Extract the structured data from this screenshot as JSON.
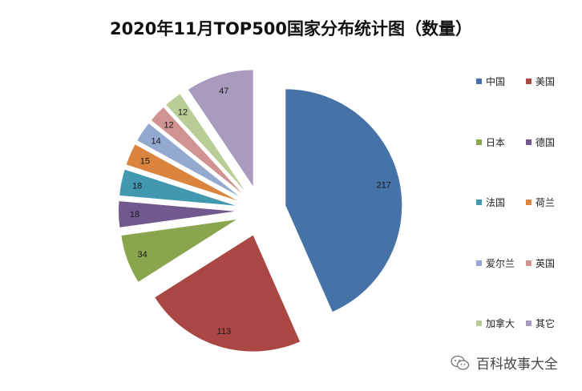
{
  "chart_data": {
    "type": "pie",
    "title": "2020年11月TOP500国家分布统计图（数量）",
    "categories": [
      "中国",
      "美国",
      "日本",
      "德国",
      "法国",
      "荷兰",
      "爱尔兰",
      "英国",
      "加拿大",
      "其它"
    ],
    "values": [
      217,
      113,
      34,
      18,
      18,
      15,
      14,
      12,
      12,
      47
    ],
    "colors": [
      "#4572A7",
      "#AA4643",
      "#89A54E",
      "#71588F",
      "#4198AF",
      "#DB843D",
      "#93A9CF",
      "#D19392",
      "#B9CD96",
      "#A99BBD"
    ],
    "legend_position": "right",
    "exploded": true
  },
  "watermark": {
    "text": "百科故事大全",
    "icon": "wechat-icon"
  }
}
